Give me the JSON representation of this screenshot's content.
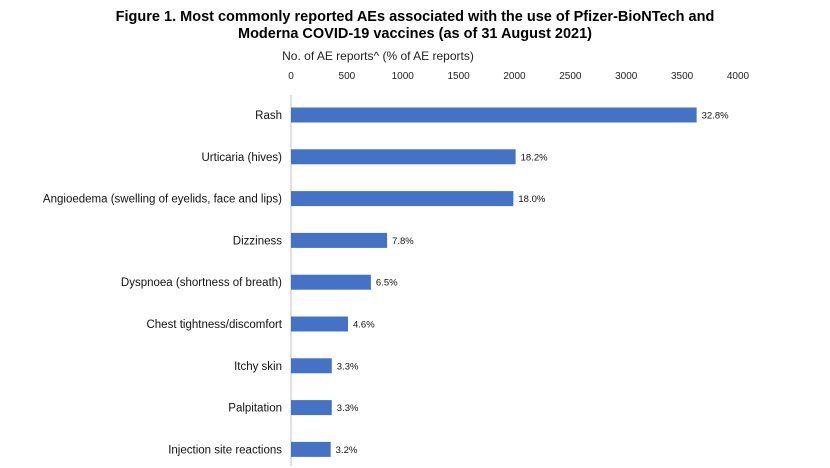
{
  "title_lines": [
    "Figure 1. Most commonly reported AEs associated with the use of Pfizer-BioNTech and",
    "Moderna COVID-19 vaccines (as of 31 August 2021)"
  ],
  "colors": {
    "bar": "#4472C4",
    "axis": "#c0c0c0"
  },
  "chart_data": {
    "type": "bar",
    "orientation": "horizontal",
    "title": "Figure 1. Most commonly reported AEs associated with the use of Pfizer-BioNTech and Moderna COVID-19 vaccines (as of 31 August 2021)",
    "xlabel": "No. of AE reports^ (% of AE reports)",
    "x_axis_position": "top",
    "xlim": [
      0,
      4000
    ],
    "x_ticks": [
      "0",
      "500",
      "1000",
      "1500",
      "2000",
      "2500",
      "3000",
      "3500",
      "4000"
    ],
    "categories": [
      "Rash",
      "Urticaria (hives)",
      "Angioedema (swelling of eyelids, face and lips)",
      "Dizziness",
      "Dyspnoea (shortness of breath)",
      "Chest tightness/discomfort",
      "Itchy skin",
      "Palpitation",
      "Injection site reactions"
    ],
    "values": [
      3630,
      2010,
      1990,
      860,
      715,
      510,
      365,
      365,
      355
    ],
    "data_labels": [
      "32.8%",
      "18.2%",
      "18.0%",
      "7.8%",
      "6.5%",
      "4.6%",
      "3.3%",
      "3.3%",
      "3.2%"
    ],
    "grid": false,
    "legend": "none"
  }
}
